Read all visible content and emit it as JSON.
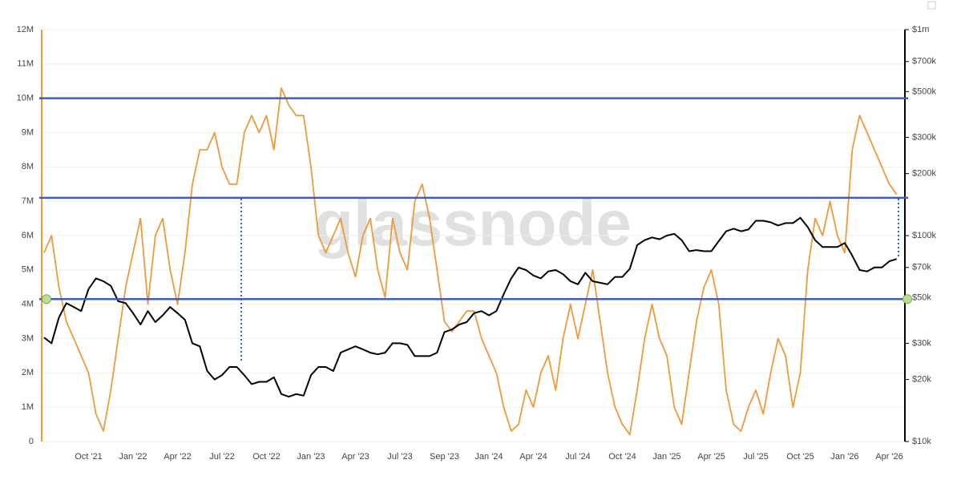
{
  "chart_data": {
    "type": "line",
    "watermark": "glassnode",
    "categories": [
      null,
      null,
      null,
      null,
      null,
      null,
      "Oct '21",
      null,
      null,
      null,
      null,
      null,
      "Jan '22",
      null,
      null,
      null,
      null,
      null,
      "Apr '22",
      null,
      null,
      null,
      null,
      null,
      "Jul '22",
      null,
      null,
      null,
      null,
      null,
      "Oct '22",
      null,
      null,
      null,
      null,
      null,
      "Jan '23",
      null,
      null,
      null,
      null,
      null,
      "Apr '23",
      null,
      null,
      null,
      null,
      null,
      "Jul '23",
      null,
      null,
      null,
      null,
      null,
      "Sep '23",
      null,
      null,
      null,
      null,
      null,
      "Jan '24",
      null,
      null,
      null,
      null,
      null,
      "Apr '24",
      null,
      null,
      null,
      null,
      null,
      "Jul '24",
      null,
      null,
      null,
      null,
      null,
      "Oct '24",
      null,
      null,
      null,
      null,
      null,
      "Jan '25",
      null,
      null,
      null,
      null,
      null,
      "Apr '25",
      null,
      null,
      null,
      null,
      null,
      "Jul '25",
      null,
      null,
      null,
      null,
      null,
      "Oct '25",
      null,
      null,
      null,
      null,
      null,
      "Jan '26",
      null,
      null,
      null,
      null,
      null,
      "Apr '26",
      null
    ],
    "series": [
      {
        "color": "#ee9a3a",
        "values": [
          5.5,
          6.0,
          4.5,
          3.5,
          3.0,
          2.5,
          2.0,
          0.8,
          0.3,
          1.5,
          3.0,
          4.5,
          5.5,
          6.5,
          4.0,
          6.0,
          6.5,
          5.0,
          4.0,
          5.5,
          7.5,
          8.5,
          8.5,
          9.0,
          8.0,
          7.5,
          7.5,
          9.0,
          9.5,
          9.0,
          9.5,
          8.5,
          10.3,
          9.8,
          9.5,
          9.5,
          8.0,
          6.0,
          5.5,
          6.0,
          6.5,
          5.5,
          4.8,
          6.0,
          6.5,
          5.0,
          4.2,
          6.5,
          5.5,
          5.0,
          7.0,
          7.5,
          6.5,
          5.0,
          3.5,
          3.2,
          3.5,
          3.8,
          3.8,
          3.0,
          2.5,
          2.0,
          1.0,
          0.3,
          0.5,
          1.5,
          1.0,
          2.0,
          2.5,
          1.5,
          3.0,
          4.0,
          3.0,
          4.0,
          5.0,
          3.5,
          2.0,
          1.0,
          0.5,
          0.2,
          1.5,
          3.0,
          4.0,
          3.0,
          2.5,
          1.0,
          0.5,
          2.0,
          3.5,
          4.5,
          5.0,
          4.0,
          1.5,
          0.5,
          0.3,
          1.0,
          1.5,
          0.8,
          2.0,
          3.0,
          2.5,
          1.0,
          2.0,
          5.0,
          6.5,
          6.0,
          7.0,
          6.0,
          5.5,
          8.5,
          9.5,
          9.0,
          8.5,
          8.0,
          7.5,
          7.2
        ]
      },
      {
        "color": "#000000",
        "axis": "y2",
        "values": [
          32,
          30,
          40,
          47,
          45,
          43,
          55,
          62,
          60,
          57,
          48,
          47,
          42,
          37,
          43,
          38,
          41,
          45,
          42,
          39,
          30,
          29,
          22,
          20,
          21,
          23,
          23,
          21,
          19,
          19.5,
          19.5,
          20.5,
          17,
          16.5,
          17,
          16.7,
          21,
          23,
          23,
          22,
          27,
          28,
          29,
          28,
          27,
          26.5,
          27,
          30,
          30,
          29.5,
          26,
          26,
          26,
          27,
          34,
          35,
          37,
          38,
          42,
          43,
          41,
          43,
          52,
          62,
          70,
          68,
          64,
          62,
          67,
          68,
          65,
          60,
          58,
          66,
          60,
          59,
          58,
          63,
          63,
          69,
          90,
          95,
          98,
          96,
          100,
          102,
          95,
          84,
          85,
          84,
          84,
          94,
          105,
          108,
          105,
          107,
          118,
          118,
          116,
          112,
          115,
          115,
          122,
          110,
          95,
          88,
          88,
          88,
          92,
          80,
          68,
          67,
          70,
          70,
          75,
          77
        ]
      }
    ],
    "ylim": [
      0,
      12
    ],
    "yticks": [
      0,
      {
        "value": 1,
        "label": "1M"
      },
      {
        "value": 2,
        "label": "2M"
      },
      {
        "value": 3,
        "label": "3M"
      },
      {
        "value": 4,
        "label": "4M"
      },
      {
        "value": 5,
        "label": "5M"
      },
      {
        "value": 6,
        "label": "6M"
      },
      {
        "value": 7,
        "label": "7M"
      },
      {
        "value": 8,
        "label": "8M"
      },
      {
        "value": 9,
        "label": "9M"
      },
      {
        "value": 10,
        "label": "10M"
      },
      {
        "value": 11,
        "label": "11M"
      },
      {
        "value": 12,
        "label": "12M"
      }
    ],
    "y2lim": [
      10,
      1000
    ],
    "y2_log": true,
    "y2ticks": [
      {
        "value": 10,
        "label": "$10k"
      },
      {
        "value": 20,
        "label": "$20k"
      },
      {
        "value": 30,
        "label": "$30k"
      },
      {
        "value": 50,
        "label": "$50k"
      },
      {
        "value": 70,
        "label": "$70k"
      },
      {
        "value": 100,
        "label": "$100k"
      },
      {
        "value": 200,
        "label": "$200k"
      },
      {
        "value": 300,
        "label": "$300k"
      },
      {
        "value": 500,
        "label": "$500k"
      },
      {
        "value": 700,
        "label": "$700k"
      },
      {
        "value": 1000,
        "label": "$1m"
      }
    ],
    "grid": true,
    "reference_lines": {
      "color": "#3b5fc0",
      "values": [
        10,
        7.1,
        4.15
      ]
    }
  }
}
